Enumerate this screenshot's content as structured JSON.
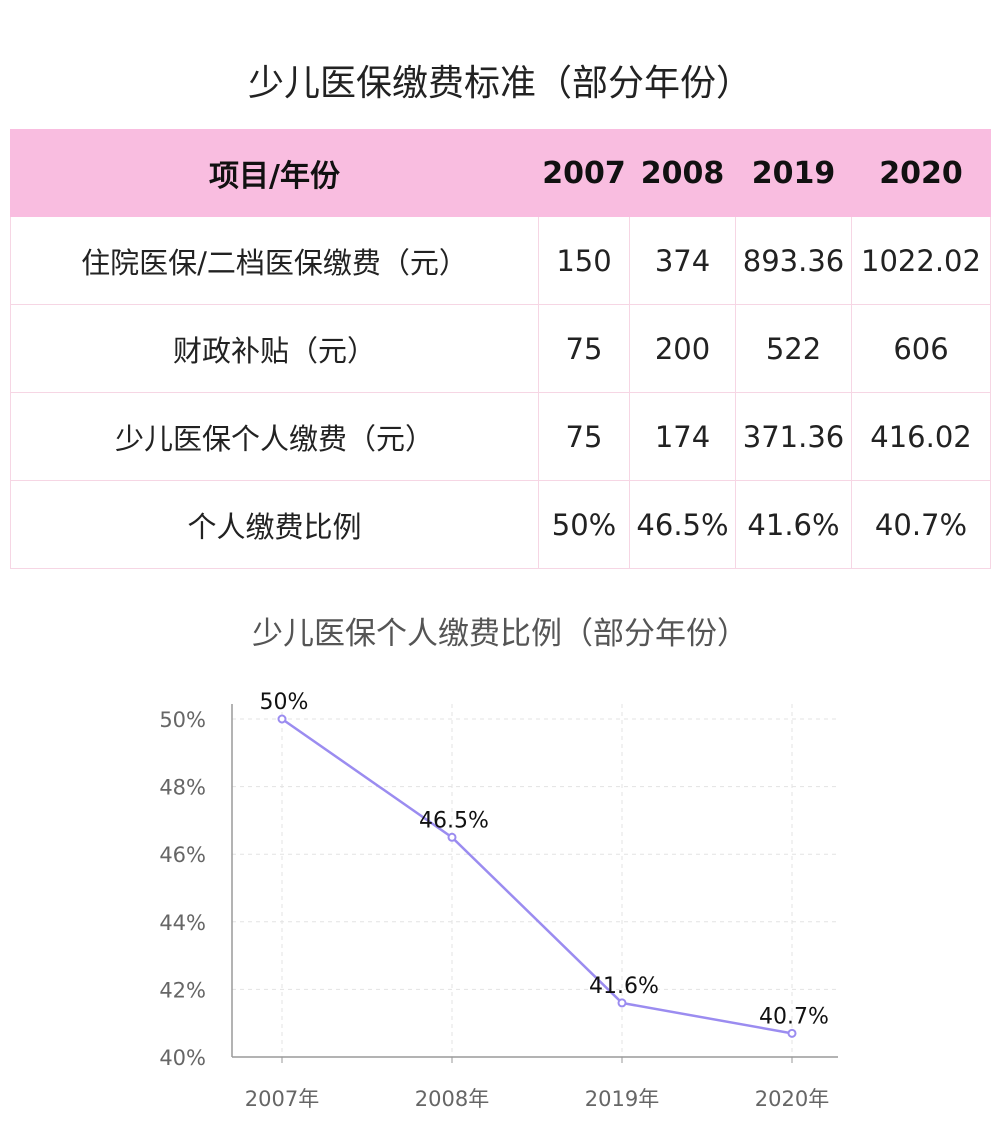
{
  "table": {
    "title": "少儿医保缴费标准（部分年份）",
    "header": [
      "项目/年份",
      "2007",
      "2008",
      "2019",
      "2020"
    ],
    "rows": [
      [
        "住院医保/二档医保缴费（元）",
        "150",
        "374",
        "893.36",
        "1022.02"
      ],
      [
        "财政补贴（元）",
        "75",
        "200",
        "522",
        "606"
      ],
      [
        "少儿医保个人缴费（元）",
        "75",
        "174",
        "371.36",
        "416.02"
      ],
      [
        "个人缴费比例",
        "50%",
        "46.5%",
        "41.6%",
        "40.7%"
      ]
    ]
  },
  "chart_data": {
    "type": "line",
    "title": "少儿医保个人缴费比例（部分年份）",
    "categories": [
      "2007年",
      "2008年",
      "2019年",
      "2020年"
    ],
    "series": [
      {
        "values": [
          50,
          46.5,
          41.6,
          40.7
        ],
        "labels": [
          "50%",
          "46.5%",
          "41.6%",
          "40.7%"
        ]
      }
    ],
    "ylim": [
      40,
      50
    ],
    "yticks": [
      40,
      42,
      44,
      46,
      48,
      50
    ],
    "ytick_labels": [
      "40%",
      "42%",
      "44%",
      "46%",
      "48%",
      "50%"
    ],
    "grid": true,
    "colors": {
      "line": "#9b8cf0",
      "grid": "#e3e3e3",
      "axis": "#9a9a9a"
    }
  }
}
